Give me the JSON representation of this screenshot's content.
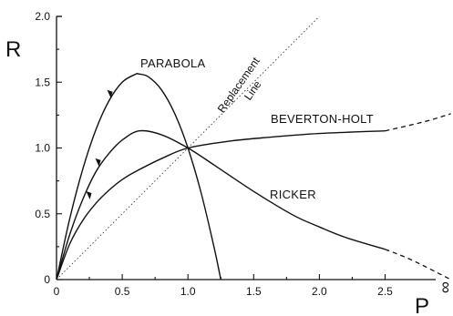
{
  "chart_data": {
    "type": "line",
    "title": "",
    "xlabel": "P",
    "ylabel": "R",
    "xlim": [
      0,
      2.5
    ],
    "ylim": [
      0,
      2.0
    ],
    "x_infinity_label": "∞",
    "x_ticks": [
      {
        "value": 0,
        "label": "0"
      },
      {
        "value": 0.5,
        "label": "0.5"
      },
      {
        "value": 1.0,
        "label": "1.0"
      },
      {
        "value": 1.5,
        "label": "1.5"
      },
      {
        "value": 2.0,
        "label": "2.0"
      },
      {
        "value": 2.5,
        "label": "2.5"
      }
    ],
    "y_ticks": [
      {
        "value": 0,
        "label": "0"
      },
      {
        "value": 0.5,
        "label": "0.5"
      },
      {
        "value": 1.0,
        "label": "1.0"
      },
      {
        "value": 1.5,
        "label": "1.5"
      },
      {
        "value": 2.0,
        "label": "2.0"
      }
    ],
    "grid": false,
    "series": [
      {
        "name": "PARABOLA",
        "x": [
          0,
          0.1,
          0.2,
          0.3,
          0.4,
          0.5,
          0.6,
          0.625,
          0.7,
          0.8,
          0.9,
          1.0,
          1.1,
          1.2,
          1.25
        ],
        "y": [
          0,
          0.46,
          0.84,
          1.14,
          1.36,
          1.5,
          1.56,
          1.5625,
          1.54,
          1.44,
          1.26,
          1.0,
          0.66,
          0.24,
          0
        ],
        "marker_at": {
          "x": 0.42,
          "y": 1.4
        }
      },
      {
        "name": "RICKER",
        "x": [
          0,
          0.1,
          0.2,
          0.3,
          0.4,
          0.5,
          0.63,
          0.8,
          1.0,
          1.2,
          1.5,
          1.8,
          2.0,
          2.2,
          2.5
        ],
        "y": [
          0,
          0.34,
          0.61,
          0.82,
          0.96,
          1.06,
          1.13,
          1.1,
          1.0,
          0.87,
          0.67,
          0.49,
          0.4,
          0.32,
          0.23
        ],
        "dashed_tail": {
          "x": [
            2.5,
            2.7,
            3.0
          ],
          "y": [
            0.23,
            0.15,
            0.0
          ]
        },
        "marker_at": {
          "x": 0.33,
          "y": 0.88
        }
      },
      {
        "name": "BEVERTON-HOLT",
        "x": [
          0,
          0.1,
          0.2,
          0.3,
          0.4,
          0.5,
          0.6,
          0.8,
          1.0,
          1.3,
          1.6,
          2.0,
          2.5
        ],
        "y": [
          0,
          0.27,
          0.45,
          0.58,
          0.68,
          0.76,
          0.82,
          0.92,
          1.0,
          1.05,
          1.08,
          1.11,
          1.13
        ],
        "dashed_tail": {
          "x": [
            2.5,
            2.8,
            3.0
          ],
          "y": [
            1.13,
            1.2,
            1.26
          ]
        },
        "marker_at": {
          "x": 0.26,
          "y": 0.63
        }
      },
      {
        "name": "Replacement Line",
        "x": [
          0,
          2.0
        ],
        "y": [
          0,
          2.0
        ],
        "style": "dotted"
      }
    ],
    "labels": {
      "parabola": "PARABOLA",
      "ricker": "RICKER",
      "beverton_holt": "BEVERTON-HOLT",
      "replacement_line_1": "Replacement",
      "replacement_line_2": "Line"
    }
  }
}
